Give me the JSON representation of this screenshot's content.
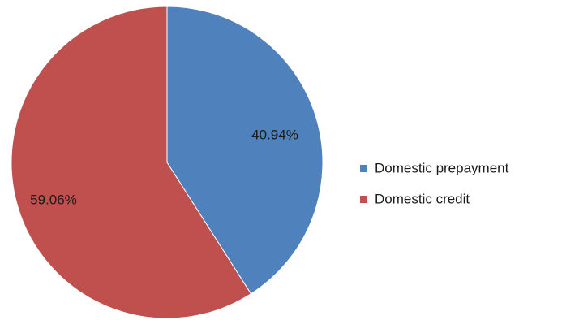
{
  "chart_data": {
    "type": "pie",
    "title": "",
    "legend_position": "right",
    "slices": [
      {
        "label": "Domestic prepayment",
        "value": 40.94,
        "value_label": "40.94%",
        "color": "#4F81BD"
      },
      {
        "label": "Domestic credit",
        "value": 59.06,
        "value_label": "59.06%",
        "color": "#C0504D"
      }
    ]
  }
}
